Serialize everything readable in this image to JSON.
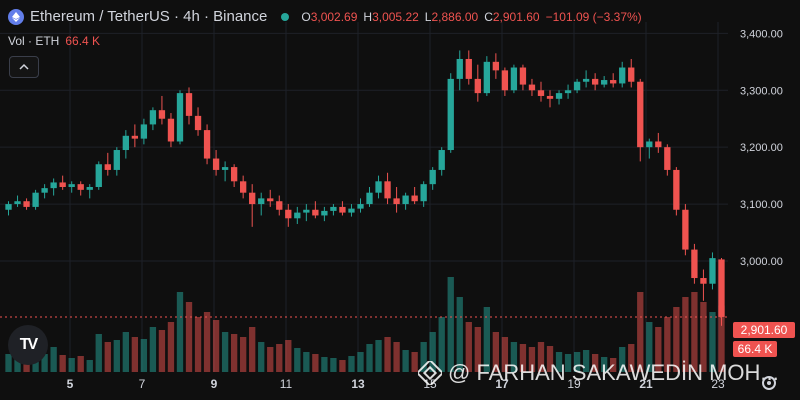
{
  "header": {
    "title": "Ethereum / TetherUS · 4h · Binance",
    "ohlc": [
      {
        "k": "O",
        "v": "3,002.69"
      },
      {
        "k": "H",
        "v": "3,005.22"
      },
      {
        "k": "L",
        "v": "2,886.00"
      },
      {
        "k": "C",
        "v": "2,901.60"
      }
    ],
    "change": "−101.09 (−3.37%)",
    "live_color": "#26a69a"
  },
  "volume": {
    "label": "Vol · ETH",
    "value": "66.4 K"
  },
  "tags": {
    "price": "2,901.60",
    "volume": "66.4 K"
  },
  "watermark": "@ FARHAN SAKAWEDİN MOH...",
  "logo": "TV",
  "colors": {
    "up": "#26a69a",
    "down": "#ef5350",
    "grid": "#1e2128",
    "text": "#d1d4dc"
  },
  "icons": [
    "ethereum-icon",
    "collapse-chevron-icon",
    "tradingview-logo-icon",
    "binance-icon",
    "settings-gear-icon"
  ],
  "chart_data": {
    "type": "candlestick",
    "y_ticks": [
      "3,400.00",
      "3,300.00",
      "3,200.00",
      "3,100.00",
      "3,000.00"
    ],
    "y_tick_values": [
      3400,
      3300,
      3200,
      3100,
      3000
    ],
    "x_ticks": [
      "5",
      "7",
      "9",
      "11",
      "13",
      "15",
      "17",
      "19",
      "21",
      "23"
    ],
    "ylim": [
      2840,
      3420
    ],
    "last_price": 2901.6,
    "candles": [
      [
        3090,
        3105,
        3080,
        3100,
        18
      ],
      [
        3100,
        3115,
        3095,
        3105,
        20
      ],
      [
        3105,
        3110,
        3090,
        3095,
        15
      ],
      [
        3095,
        3125,
        3090,
        3120,
        22
      ],
      [
        3120,
        3135,
        3110,
        3128,
        18
      ],
      [
        3128,
        3145,
        3115,
        3138,
        25
      ],
      [
        3138,
        3150,
        3125,
        3130,
        17
      ],
      [
        3130,
        3140,
        3120,
        3135,
        14
      ],
      [
        3135,
        3140,
        3115,
        3125,
        16
      ],
      [
        3125,
        3135,
        3110,
        3130,
        12
      ],
      [
        3130,
        3175,
        3125,
        3170,
        38
      ],
      [
        3170,
        3190,
        3150,
        3160,
        30
      ],
      [
        3160,
        3200,
        3150,
        3195,
        32
      ],
      [
        3195,
        3230,
        3180,
        3220,
        40
      ],
      [
        3220,
        3240,
        3200,
        3215,
        35
      ],
      [
        3215,
        3250,
        3205,
        3240,
        33
      ],
      [
        3240,
        3270,
        3230,
        3265,
        45
      ],
      [
        3265,
        3290,
        3240,
        3250,
        42
      ],
      [
        3250,
        3260,
        3200,
        3210,
        50
      ],
      [
        3210,
        3300,
        3205,
        3295,
        80
      ],
      [
        3295,
        3305,
        3240,
        3255,
        70
      ],
      [
        3255,
        3270,
        3220,
        3230,
        55
      ],
      [
        3230,
        3240,
        3170,
        3180,
        60
      ],
      [
        3180,
        3195,
        3150,
        3160,
        52
      ],
      [
        3160,
        3175,
        3140,
        3165,
        40
      ],
      [
        3165,
        3170,
        3130,
        3140,
        38
      ],
      [
        3140,
        3150,
        3110,
        3120,
        35
      ],
      [
        3120,
        3135,
        3060,
        3100,
        45
      ],
      [
        3100,
        3120,
        3080,
        3110,
        30
      ],
      [
        3110,
        3125,
        3095,
        3105,
        25
      ],
      [
        3105,
        3115,
        3080,
        3090,
        28
      ],
      [
        3090,
        3100,
        3060,
        3075,
        32
      ],
      [
        3075,
        3095,
        3065,
        3085,
        24
      ],
      [
        3085,
        3100,
        3070,
        3090,
        20
      ],
      [
        3090,
        3105,
        3075,
        3080,
        18
      ],
      [
        3080,
        3095,
        3070,
        3088,
        15
      ],
      [
        3088,
        3100,
        3080,
        3095,
        14
      ],
      [
        3095,
        3105,
        3080,
        3085,
        12
      ],
      [
        3085,
        3100,
        3078,
        3092,
        16
      ],
      [
        3092,
        3110,
        3085,
        3100,
        20
      ],
      [
        3100,
        3130,
        3095,
        3120,
        28
      ],
      [
        3120,
        3150,
        3110,
        3140,
        32
      ],
      [
        3140,
        3155,
        3100,
        3110,
        35
      ],
      [
        3110,
        3130,
        3085,
        3100,
        30
      ],
      [
        3100,
        3120,
        3090,
        3115,
        22
      ],
      [
        3115,
        3130,
        3100,
        3105,
        20
      ],
      [
        3105,
        3140,
        3095,
        3135,
        30
      ],
      [
        3135,
        3165,
        3125,
        3160,
        40
      ],
      [
        3160,
        3200,
        3150,
        3195,
        55
      ],
      [
        3195,
        3330,
        3190,
        3320,
        95
      ],
      [
        3320,
        3370,
        3300,
        3355,
        75
      ],
      [
        3355,
        3370,
        3310,
        3320,
        50
      ],
      [
        3320,
        3345,
        3280,
        3295,
        45
      ],
      [
        3295,
        3360,
        3290,
        3350,
        65
      ],
      [
        3350,
        3365,
        3320,
        3335,
        40
      ],
      [
        3335,
        3340,
        3290,
        3300,
        35
      ],
      [
        3300,
        3345,
        3295,
        3340,
        30
      ],
      [
        3340,
        3345,
        3300,
        3310,
        28
      ],
      [
        3310,
        3320,
        3290,
        3300,
        25
      ],
      [
        3300,
        3315,
        3280,
        3290,
        30
      ],
      [
        3290,
        3300,
        3270,
        3285,
        26
      ],
      [
        3285,
        3300,
        3275,
        3295,
        20
      ],
      [
        3295,
        3310,
        3285,
        3300,
        18
      ],
      [
        3300,
        3320,
        3295,
        3315,
        20
      ],
      [
        3315,
        3335,
        3305,
        3320,
        22
      ],
      [
        3320,
        3330,
        3300,
        3310,
        18
      ],
      [
        3310,
        3325,
        3305,
        3318,
        15
      ],
      [
        3318,
        3330,
        3305,
        3312,
        14
      ],
      [
        3312,
        3350,
        3305,
        3340,
        25
      ],
      [
        3340,
        3355,
        3305,
        3315,
        28
      ],
      [
        3315,
        3320,
        3175,
        3200,
        80
      ],
      [
        3200,
        3215,
        3180,
        3210,
        50
      ],
      [
        3210,
        3225,
        3190,
        3200,
        45
      ],
      [
        3200,
        3205,
        3150,
        3160,
        55
      ],
      [
        3160,
        3165,
        3080,
        3090,
        65
      ],
      [
        3090,
        3100,
        3010,
        3020,
        75
      ],
      [
        3020,
        3030,
        2960,
        2970,
        80
      ],
      [
        2970,
        2985,
        2930,
        2960,
        70
      ],
      [
        2960,
        3015,
        2950,
        3005,
        60
      ],
      [
        3002.69,
        3005.22,
        2886,
        2901.6,
        66.4
      ]
    ]
  }
}
